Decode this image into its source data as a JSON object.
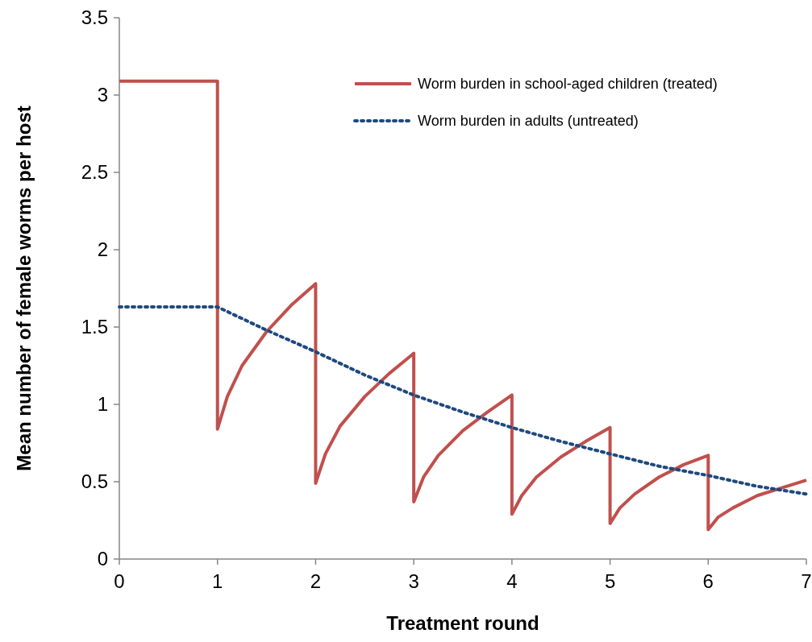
{
  "chart_data": {
    "type": "line",
    "xlabel": "Treatment round",
    "ylabel": "Mean number of female worms per host",
    "xlim": [
      0,
      7
    ],
    "ylim": [
      0,
      3.5
    ],
    "xticks": [
      0,
      1,
      2,
      3,
      4,
      5,
      6,
      7
    ],
    "yticks": [
      0,
      0.5,
      1,
      1.5,
      2,
      2.5,
      3,
      3.5
    ],
    "legend": "top right",
    "grid": false,
    "marker": "none",
    "series": [
      {
        "name": "Worm burden in school-aged children (treated)",
        "color": "#c0504d",
        "line_style": "solid",
        "x": [
          0,
          1,
          1,
          1.1,
          1.25,
          1.5,
          1.75,
          2,
          2,
          2.1,
          2.25,
          2.5,
          2.75,
          3,
          3,
          3.1,
          3.25,
          3.5,
          3.75,
          4,
          4,
          4.1,
          4.25,
          4.5,
          4.75,
          5,
          5,
          5.1,
          5.25,
          5.5,
          5.75,
          6,
          6,
          6.1,
          6.25,
          6.5,
          6.75,
          7
        ],
        "values": [
          3.09,
          3.09,
          0.84,
          1.05,
          1.25,
          1.47,
          1.64,
          1.78,
          0.49,
          0.68,
          0.86,
          1.05,
          1.2,
          1.33,
          0.37,
          0.53,
          0.67,
          0.83,
          0.95,
          1.06,
          0.29,
          0.41,
          0.53,
          0.66,
          0.76,
          0.85,
          0.23,
          0.33,
          0.42,
          0.53,
          0.61,
          0.67,
          0.19,
          0.27,
          0.33,
          0.41,
          0.46,
          0.51
        ]
      },
      {
        "name": "Worm burden in adults (untreated)",
        "color": "#1f497d",
        "line_style": "dotted",
        "x": [
          0,
          1,
          1.5,
          2,
          2.5,
          3,
          3.5,
          4,
          4.5,
          5,
          5.5,
          6,
          6.5,
          7
        ],
        "values": [
          1.63,
          1.63,
          1.48,
          1.34,
          1.19,
          1.06,
          0.95,
          0.85,
          0.76,
          0.68,
          0.6,
          0.54,
          0.47,
          0.42
        ]
      }
    ]
  }
}
